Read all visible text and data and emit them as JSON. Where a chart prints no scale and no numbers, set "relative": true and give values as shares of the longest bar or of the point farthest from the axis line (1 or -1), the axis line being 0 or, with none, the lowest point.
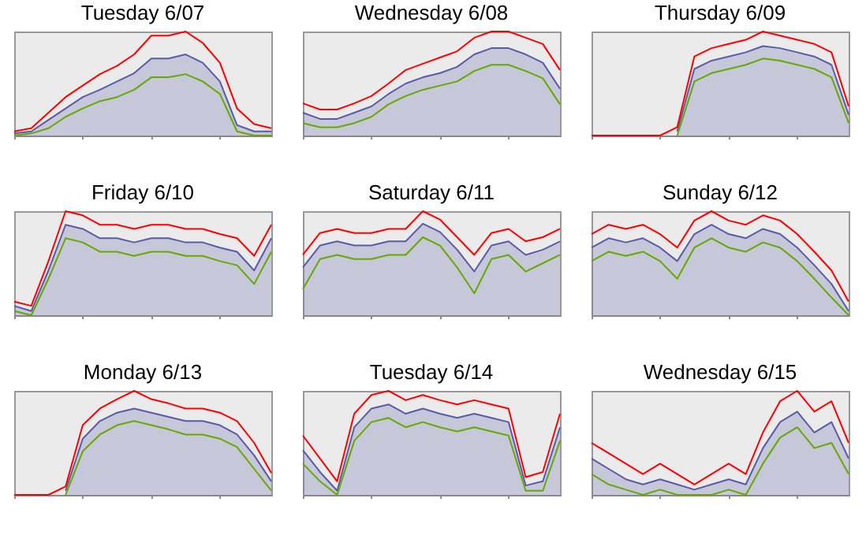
{
  "chart_data": [
    {
      "type": "line",
      "title": "Tuesday 6/07",
      "relative": true,
      "categories": [
        null,
        null,
        null,
        null,
        null,
        null,
        null,
        null,
        null,
        null,
        null,
        null,
        null,
        null,
        null,
        null
      ],
      "series": [
        {
          "type": "area",
          "color": "#5a5aa8",
          "values": [
            0.02,
            0.04,
            0.15,
            0.26,
            0.37,
            0.44,
            0.52,
            0.6,
            0.74,
            0.74,
            0.78,
            0.7,
            0.52,
            0.1,
            0.04,
            0.04
          ]
        },
        {
          "type": "line",
          "color": "#ff0000",
          "values": [
            0.04,
            0.07,
            0.22,
            0.37,
            0.48,
            0.59,
            0.67,
            0.78,
            0.96,
            0.96,
            1,
            0.89,
            0.7,
            0.26,
            0.11,
            0.07
          ]
        },
        {
          "type": "line",
          "color": "#66a800",
          "values": [
            0,
            0.02,
            0.07,
            0.18,
            0.26,
            0.33,
            0.37,
            0.44,
            0.56,
            0.56,
            0.59,
            0.52,
            0.4,
            0.04,
            0,
            0
          ]
        }
      ]
    },
    {
      "type": "line",
      "title": "Wednesday 6/08",
      "relative": true,
      "categories": [
        null,
        null,
        null,
        null,
        null,
        null,
        null,
        null,
        null,
        null,
        null,
        null,
        null,
        null,
        null,
        null
      ],
      "series": [
        {
          "type": "area",
          "color": "#5a5aa8",
          "values": [
            0.22,
            0.16,
            0.16,
            0.22,
            0.28,
            0.4,
            0.5,
            0.56,
            0.6,
            0.66,
            0.78,
            0.84,
            0.84,
            0.78,
            0.7,
            0.45
          ]
        },
        {
          "type": "line",
          "color": "#ff0000",
          "values": [
            0.31,
            0.25,
            0.25,
            0.31,
            0.38,
            0.5,
            0.63,
            0.69,
            0.75,
            0.81,
            0.94,
            1,
            1,
            0.94,
            0.88,
            0.63
          ]
        },
        {
          "type": "line",
          "color": "#66a800",
          "values": [
            0.12,
            0.08,
            0.08,
            0.12,
            0.18,
            0.3,
            0.38,
            0.44,
            0.48,
            0.52,
            0.62,
            0.68,
            0.68,
            0.62,
            0.55,
            0.3
          ]
        }
      ]
    },
    {
      "type": "line",
      "title": "Thursday 6/09",
      "relative": true,
      "categories": [
        null,
        null,
        null,
        null,
        null,
        null,
        null,
        null,
        null,
        null,
        null,
        null,
        null,
        null,
        null,
        null
      ],
      "series": [
        {
          "type": "area",
          "color": "#5a5aa8",
          "values": [
            null,
            null,
            null,
            null,
            null,
            0.04,
            0.64,
            0.72,
            0.76,
            0.8,
            0.86,
            0.84,
            0.8,
            0.76,
            0.68,
            0.2
          ]
        },
        {
          "type": "line",
          "color": "#66a800",
          "values": [
            null,
            null,
            null,
            null,
            null,
            0,
            0.52,
            0.6,
            0.64,
            0.68,
            0.74,
            0.72,
            0.68,
            0.64,
            0.56,
            0.12
          ]
        },
        {
          "type": "line",
          "color": "#ff0000",
          "values": [
            0,
            0,
            0,
            0,
            0,
            0.08,
            0.76,
            0.84,
            0.88,
            0.92,
            1,
            0.96,
            0.92,
            0.88,
            0.8,
            0.28
          ]
        }
      ]
    },
    {
      "type": "line",
      "title": "Friday 6/10",
      "relative": true,
      "categories": [
        null,
        null,
        null,
        null,
        null,
        null,
        null,
        null,
        null,
        null,
        null,
        null,
        null,
        null,
        null,
        null
      ],
      "series": [
        {
          "type": "area",
          "color": "#5a5aa8",
          "values": [
            0.09,
            0.04,
            0.43,
            0.87,
            0.83,
            0.74,
            0.74,
            0.7,
            0.74,
            0.74,
            0.7,
            0.7,
            0.65,
            0.61,
            0.43,
            0.74
          ]
        },
        {
          "type": "line",
          "color": "#ff0000",
          "values": [
            0.13,
            0.09,
            0.52,
            1,
            0.96,
            0.87,
            0.87,
            0.83,
            0.87,
            0.87,
            0.83,
            0.83,
            0.78,
            0.74,
            0.57,
            0.87
          ]
        },
        {
          "type": "line",
          "color": "#66a800",
          "values": [
            0.04,
            0,
            0.35,
            0.74,
            0.7,
            0.61,
            0.61,
            0.57,
            0.61,
            0.61,
            0.57,
            0.57,
            0.52,
            0.48,
            0.3,
            0.61
          ]
        }
      ]
    },
    {
      "type": "line",
      "title": "Saturday 6/11",
      "relative": true,
      "categories": [
        null,
        null,
        null,
        null,
        null,
        null,
        null,
        null,
        null,
        null,
        null,
        null,
        null,
        null,
        null,
        null
      ],
      "series": [
        {
          "type": "area",
          "color": "#5a5aa8",
          "values": [
            0.46,
            0.67,
            0.71,
            0.67,
            0.67,
            0.71,
            0.71,
            0.88,
            0.8,
            0.63,
            0.42,
            0.67,
            0.71,
            0.58,
            0.63,
            0.71
          ]
        },
        {
          "type": "line",
          "color": "#ff0000",
          "values": [
            0.58,
            0.79,
            0.83,
            0.79,
            0.79,
            0.83,
            0.83,
            1,
            0.92,
            0.75,
            0.58,
            0.79,
            0.83,
            0.71,
            0.75,
            0.83
          ]
        },
        {
          "type": "line",
          "color": "#66a800",
          "values": [
            0.25,
            0.54,
            0.58,
            0.54,
            0.54,
            0.58,
            0.58,
            0.75,
            0.67,
            0.46,
            0.21,
            0.54,
            0.58,
            0.42,
            0.5,
            0.58
          ]
        }
      ]
    },
    {
      "type": "line",
      "title": "Sunday 6/12",
      "relative": true,
      "categories": [
        null,
        null,
        null,
        null,
        null,
        null,
        null,
        null,
        null,
        null,
        null,
        null,
        null,
        null,
        null,
        null
      ],
      "series": [
        {
          "type": "area",
          "color": "#5a5aa8",
          "values": [
            0.65,
            0.74,
            0.7,
            0.74,
            0.65,
            0.52,
            0.78,
            0.87,
            0.78,
            0.74,
            0.83,
            0.78,
            0.65,
            0.48,
            0.3,
            0.04
          ]
        },
        {
          "type": "line",
          "color": "#ff0000",
          "values": [
            0.78,
            0.87,
            0.83,
            0.87,
            0.78,
            0.65,
            0.91,
            1,
            0.91,
            0.87,
            0.96,
            0.91,
            0.78,
            0.61,
            0.43,
            0.13
          ]
        },
        {
          "type": "line",
          "color": "#66a800",
          "values": [
            0.52,
            0.61,
            0.57,
            0.61,
            0.52,
            0.35,
            0.65,
            0.74,
            0.65,
            0.61,
            0.7,
            0.65,
            0.52,
            0.35,
            0.17,
            0
          ]
        }
      ]
    },
    {
      "type": "line",
      "title": "Monday 6/13",
      "relative": true,
      "categories": [
        null,
        null,
        null,
        null,
        null,
        null,
        null,
        null,
        null,
        null,
        null,
        null,
        null,
        null,
        null,
        null
      ],
      "series": [
        {
          "type": "area",
          "color": "#5a5aa8",
          "values": [
            null,
            null,
            null,
            0.04,
            0.54,
            0.71,
            0.79,
            0.83,
            0.79,
            0.75,
            0.71,
            0.71,
            0.67,
            0.58,
            0.38,
            0.13
          ]
        },
        {
          "type": "line",
          "color": "#66a800",
          "values": [
            null,
            null,
            null,
            0,
            0.42,
            0.58,
            0.67,
            0.71,
            0.67,
            0.63,
            0.58,
            0.58,
            0.54,
            0.46,
            0.25,
            0.04
          ]
        },
        {
          "type": "line",
          "color": "#ff0000",
          "values": [
            0,
            0,
            0,
            0.08,
            0.67,
            0.83,
            0.92,
            1,
            0.92,
            0.88,
            0.83,
            0.83,
            0.79,
            0.71,
            0.5,
            0.21
          ]
        }
      ]
    },
    {
      "type": "line",
      "title": "Tuesday 6/14",
      "relative": true,
      "categories": [
        null,
        null,
        null,
        null,
        null,
        null,
        null,
        null,
        null,
        null,
        null,
        null,
        null,
        null,
        null,
        null
      ],
      "series": [
        {
          "type": "area",
          "color": "#5a5aa8",
          "values": [
            0.43,
            0.22,
            0.04,
            0.65,
            0.83,
            0.87,
            0.78,
            0.83,
            0.78,
            0.74,
            0.78,
            0.74,
            0.7,
            0.09,
            0.13,
            0.65
          ]
        },
        {
          "type": "line",
          "color": "#ff0000",
          "values": [
            0.57,
            0.35,
            0.13,
            0.78,
            0.96,
            1,
            0.91,
            0.96,
            0.91,
            0.87,
            0.91,
            0.87,
            0.83,
            0.17,
            0.22,
            0.78
          ]
        },
        {
          "type": "line",
          "color": "#66a800",
          "values": [
            0.3,
            0.13,
            0,
            0.52,
            0.7,
            0.74,
            0.65,
            0.7,
            0.65,
            0.61,
            0.65,
            0.61,
            0.57,
            0.04,
            0.04,
            0.52
          ]
        }
      ]
    },
    {
      "type": "line",
      "title": "Wednesday 6/15",
      "relative": true,
      "categories": [
        null,
        null,
        null,
        null,
        null,
        null,
        null,
        null,
        null,
        null,
        null,
        null,
        null,
        null,
        null,
        null
      ],
      "series": [
        {
          "type": "area",
          "color": "#5a5aa8",
          "values": [
            0.35,
            0.25,
            0.15,
            0.1,
            0.15,
            0.1,
            0.05,
            0.1,
            0.15,
            0.1,
            0.45,
            0.7,
            0.8,
            0.6,
            0.7,
            0.35
          ]
        },
        {
          "type": "line",
          "color": "#ff0000",
          "values": [
            0.5,
            0.4,
            0.3,
            0.2,
            0.3,
            0.2,
            0.1,
            0.2,
            0.3,
            0.2,
            0.6,
            0.9,
            1,
            0.8,
            0.9,
            0.5
          ]
        },
        {
          "type": "line",
          "color": "#66a800",
          "values": [
            0.2,
            0.1,
            0.05,
            0,
            0.05,
            0,
            0,
            0,
            0.05,
            0,
            0.3,
            0.55,
            0.65,
            0.45,
            0.5,
            0.2
          ]
        }
      ]
    }
  ]
}
